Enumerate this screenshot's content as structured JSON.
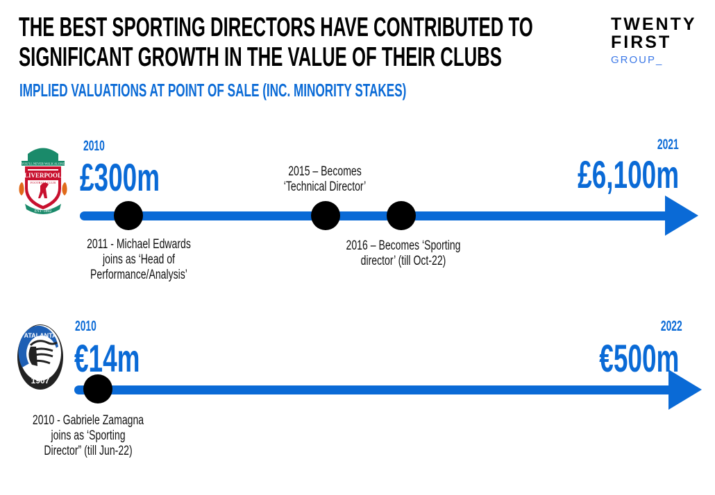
{
  "header": {
    "title_line1": "THE BEST SPORTING DIRECTORS HAVE CONTRIBUTED TO",
    "title_line2": "SIGNIFICANT GROWTH IN THE VALUE OF THEIR CLUBS",
    "subtitle": "IMPLIED VALUATIONS AT POINT OF SALE (INC. MINORITY STAKES)"
  },
  "brand": {
    "line1": "TWENTY",
    "line2": "FIRST",
    "line3": "GROUP_"
  },
  "colors": {
    "accent": "#0a6ad6",
    "marker": "#000000"
  },
  "timelines": [
    {
      "club": "Liverpool",
      "logo_text": [
        "YOU'LL NEVER WALK ALONE",
        "LIVERPOOL",
        "FOOTBALL CLUB",
        "EST·1892"
      ],
      "start_year": "2010",
      "start_value": "£300m",
      "end_year": "2021",
      "end_value": "£6,100m",
      "events": [
        {
          "lines": [
            "2011 - Michael Edwards",
            "joins as ‘Head of",
            "Performance/Analysis’"
          ]
        },
        {
          "lines": [
            "2015 – Becomes",
            "‘Technical Director’"
          ]
        },
        {
          "lines": [
            "2016 – Becomes ‘Sporting",
            "director’ (till Oct-22)"
          ]
        }
      ]
    },
    {
      "club": "Atalanta",
      "logo_text": [
        "ATALANTA",
        "1907"
      ],
      "start_year": "2010",
      "start_value": "€14m",
      "end_year": "2022",
      "end_value": "€500m",
      "events": [
        {
          "lines": [
            "2010 - Gabriele Zamagna",
            "joins as ‘Sporting",
            "Director” (till Jun-22)"
          ]
        }
      ]
    }
  ]
}
